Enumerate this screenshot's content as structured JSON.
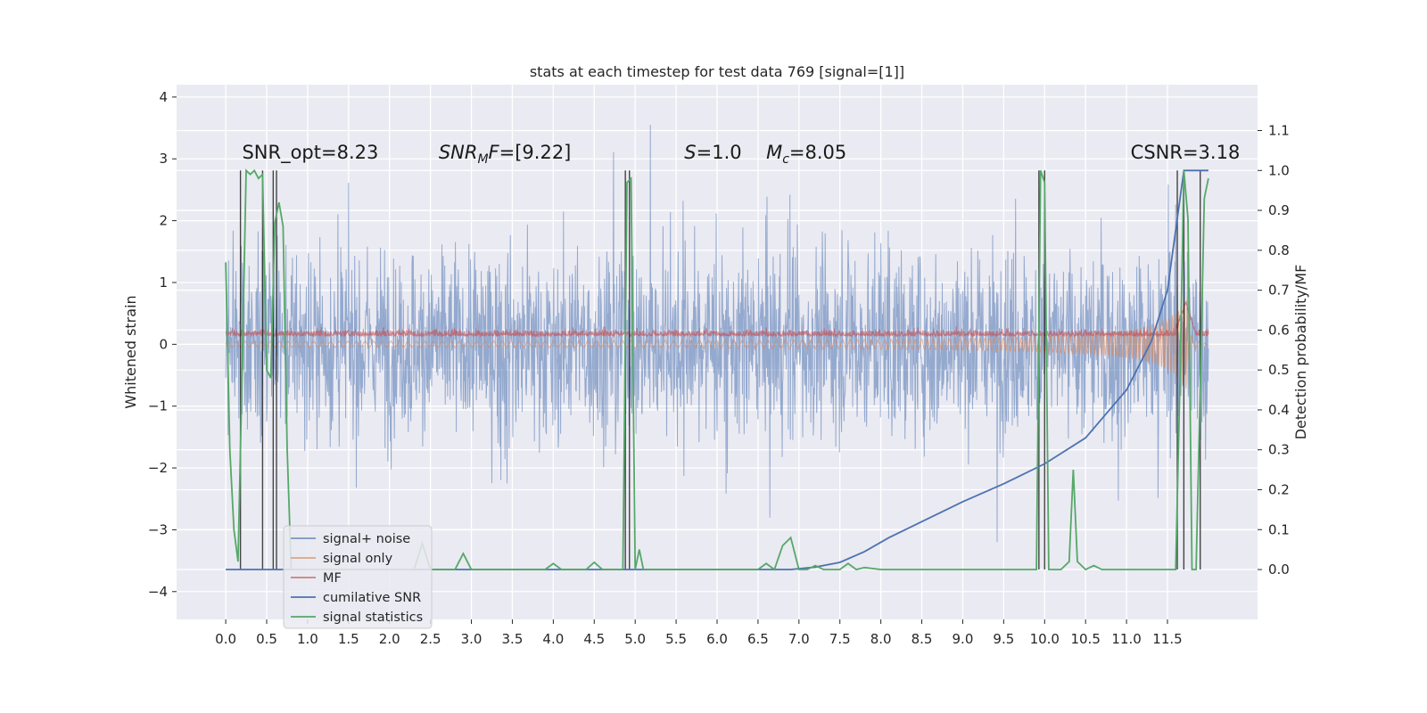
{
  "chart_data": {
    "type": "line",
    "title": "stats at each timestep for test data 769 [signal=[1]]",
    "xlabel": "",
    "ylabel": "Whitened strain",
    "y2label": "Detection probability/MF",
    "xlim": [
      -0.6,
      12.6
    ],
    "ylim": [
      -4.45,
      4.2
    ],
    "y2lim": [
      -0.125,
      1.215
    ],
    "x_ticks": [
      "0.0",
      "0.5",
      "1.0",
      "1.5",
      "2.0",
      "2.5",
      "3.0",
      "3.5",
      "4.0",
      "4.5",
      "5.0",
      "5.5",
      "6.0",
      "6.5",
      "7.0",
      "7.5",
      "8.0",
      "8.5",
      "9.0",
      "9.5",
      "10.0",
      "10.5",
      "11.0",
      "11.5"
    ],
    "y_ticks": [
      "4",
      "3",
      "2",
      "1",
      "0",
      "−1",
      "−2",
      "−3",
      "−4"
    ],
    "y2_ticks": [
      "1.1",
      "1.0",
      "0.9",
      "0.8",
      "0.7",
      "0.6",
      "0.5",
      "0.4",
      "0.3",
      "0.2",
      "0.1",
      "0.0"
    ],
    "grid": true,
    "legend_position": "lower-left",
    "annotations": [
      {
        "text": "SNR_opt=8.23",
        "x": 0.2
      },
      {
        "text": "SNRMF=[9.22]",
        "x": 2.6
      },
      {
        "text": "S=1.0",
        "x": 5.6
      },
      {
        "text": "Mc=8.05",
        "x": 6.6
      },
      {
        "text": "CSNR=3.18",
        "x": 11.05
      }
    ],
    "annotation_y": 3.0,
    "series": [
      {
        "name": "signal+ noise",
        "color": "#4c72b0",
        "axis": "left",
        "description": "whitened strain noise, amplitude approx ±2 with spikes to ±4",
        "x_range": [
          0.0,
          12.0
        ]
      },
      {
        "name": "signal only",
        "color": "#dd8452",
        "axis": "left",
        "description": "chirp signal growing toward x≈11.7",
        "x_range": [
          0.0,
          12.0
        ]
      },
      {
        "name": "MF",
        "color": "#c44e52",
        "axis": "left",
        "description": "matched filter output approx 0.0–0.3",
        "x_range": [
          0.0,
          12.0
        ]
      },
      {
        "name": "cumilative SNR",
        "color": "#4c72b0",
        "axis": "right",
        "x": [
          0.0,
          6.9,
          7.2,
          7.5,
          7.8,
          8.1,
          8.5,
          9.0,
          9.5,
          10.0,
          10.5,
          11.0,
          11.3,
          11.5,
          11.7,
          12.0
        ],
        "y": [
          0.0,
          0.0,
          0.006,
          0.018,
          0.045,
          0.08,
          0.12,
          0.17,
          0.215,
          0.265,
          0.33,
          0.45,
          0.57,
          0.7,
          1.0,
          1.0
        ]
      },
      {
        "name": "signal statistics",
        "color": "#55a868",
        "axis": "right",
        "x": [
          0.0,
          0.05,
          0.1,
          0.15,
          0.2,
          0.25,
          0.3,
          0.35,
          0.4,
          0.45,
          0.5,
          0.55,
          0.6,
          0.65,
          0.7,
          0.75,
          0.8,
          2.3,
          2.4,
          2.5,
          2.8,
          2.9,
          3.0,
          3.9,
          4.0,
          4.1,
          4.4,
          4.5,
          4.6,
          4.85,
          4.9,
          4.95,
          5.0,
          5.05,
          5.1,
          6.5,
          6.6,
          6.7,
          6.8,
          6.9,
          7.0,
          7.1,
          7.2,
          7.3,
          7.5,
          7.6,
          7.7,
          7.8,
          8.0,
          9.9,
          9.95,
          10.0,
          10.05,
          10.1,
          10.2,
          10.3,
          10.35,
          10.4,
          10.5,
          10.6,
          10.7,
          10.8,
          10.9,
          11.5,
          11.6,
          11.65,
          11.7,
          11.75,
          11.8,
          11.85,
          11.9,
          11.95,
          12.0
        ],
        "y": [
          0.77,
          0.3,
          0.1,
          0.02,
          0.5,
          1.0,
          0.99,
          1.0,
          0.98,
          0.99,
          0.5,
          0.48,
          0.87,
          0.92,
          0.86,
          0.3,
          0.0,
          0.0,
          0.065,
          0.0,
          0.0,
          0.04,
          0.0,
          0.0,
          0.015,
          0.0,
          0.0,
          0.018,
          0.0,
          0.0,
          0.97,
          0.98,
          0.0,
          0.05,
          0.0,
          0.0,
          0.015,
          0.0,
          0.06,
          0.08,
          0.0,
          0.0,
          0.01,
          0.0,
          0.0,
          0.015,
          0.0,
          0.005,
          0.0,
          0.0,
          1.0,
          0.97,
          0.0,
          0.0,
          0.0,
          0.02,
          0.25,
          0.02,
          0.0,
          0.01,
          0.0,
          0.0,
          0.0,
          0.0,
          0.0,
          0.45,
          1.0,
          0.88,
          0.0,
          0.0,
          0.45,
          0.93,
          0.98
        ]
      }
    ],
    "vertical_markers": {
      "color": "#1a1a1a",
      "x": [
        0.18,
        0.45,
        0.58,
        0.62,
        4.88,
        4.93,
        9.93,
        10.0,
        11.62,
        11.7,
        11.9
      ],
      "y2_range": [
        0.0,
        1.0
      ]
    }
  }
}
